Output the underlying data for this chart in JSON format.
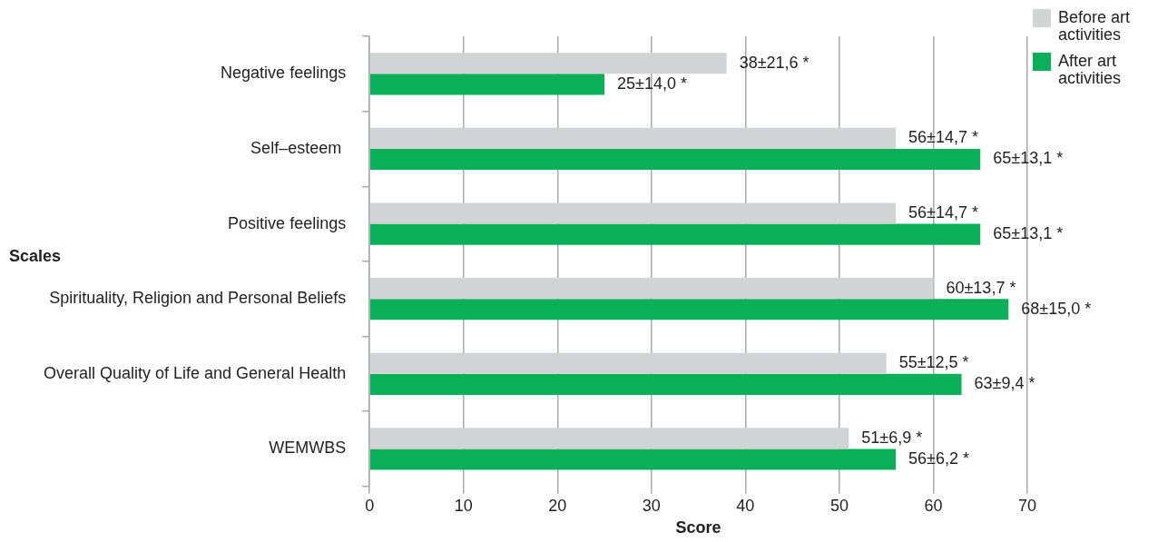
{
  "chart_data": {
    "type": "bar",
    "orientation": "horizontal",
    "ylabel": "Scales",
    "xlabel": "Score",
    "categories": [
      "Negative feelings",
      "Self–esteem ",
      "Positive feelings",
      "Spirituality, Religion and Personal Beliefs",
      "Overall Quality of Life and General Health",
      "WEMWBS"
    ],
    "series": [
      {
        "name": "Before art activities",
        "color": "#d1d3d4",
        "values": [
          38,
          56,
          56,
          60,
          55,
          51
        ],
        "value_labels": [
          "38±21,6 *",
          "56±14,7 *",
          "56±14,7 *",
          "60±13,7 *",
          "55±12,5 *",
          "51±6,9 *"
        ]
      },
      {
        "name": "After art activities",
        "color": "#0baf5a",
        "values": [
          25,
          65,
          65,
          68,
          63,
          56
        ],
        "value_labels": [
          "25±14,0 *",
          "65±13,1 *",
          "65±13,1 *",
          "68±15,0 *",
          "63±9,4 *",
          "56±6,2 *"
        ]
      }
    ],
    "xlim": [
      0,
      70
    ],
    "xticks": [
      0,
      10,
      20,
      30,
      40,
      50,
      60,
      70
    ],
    "grid": "x",
    "legend": "top right"
  }
}
